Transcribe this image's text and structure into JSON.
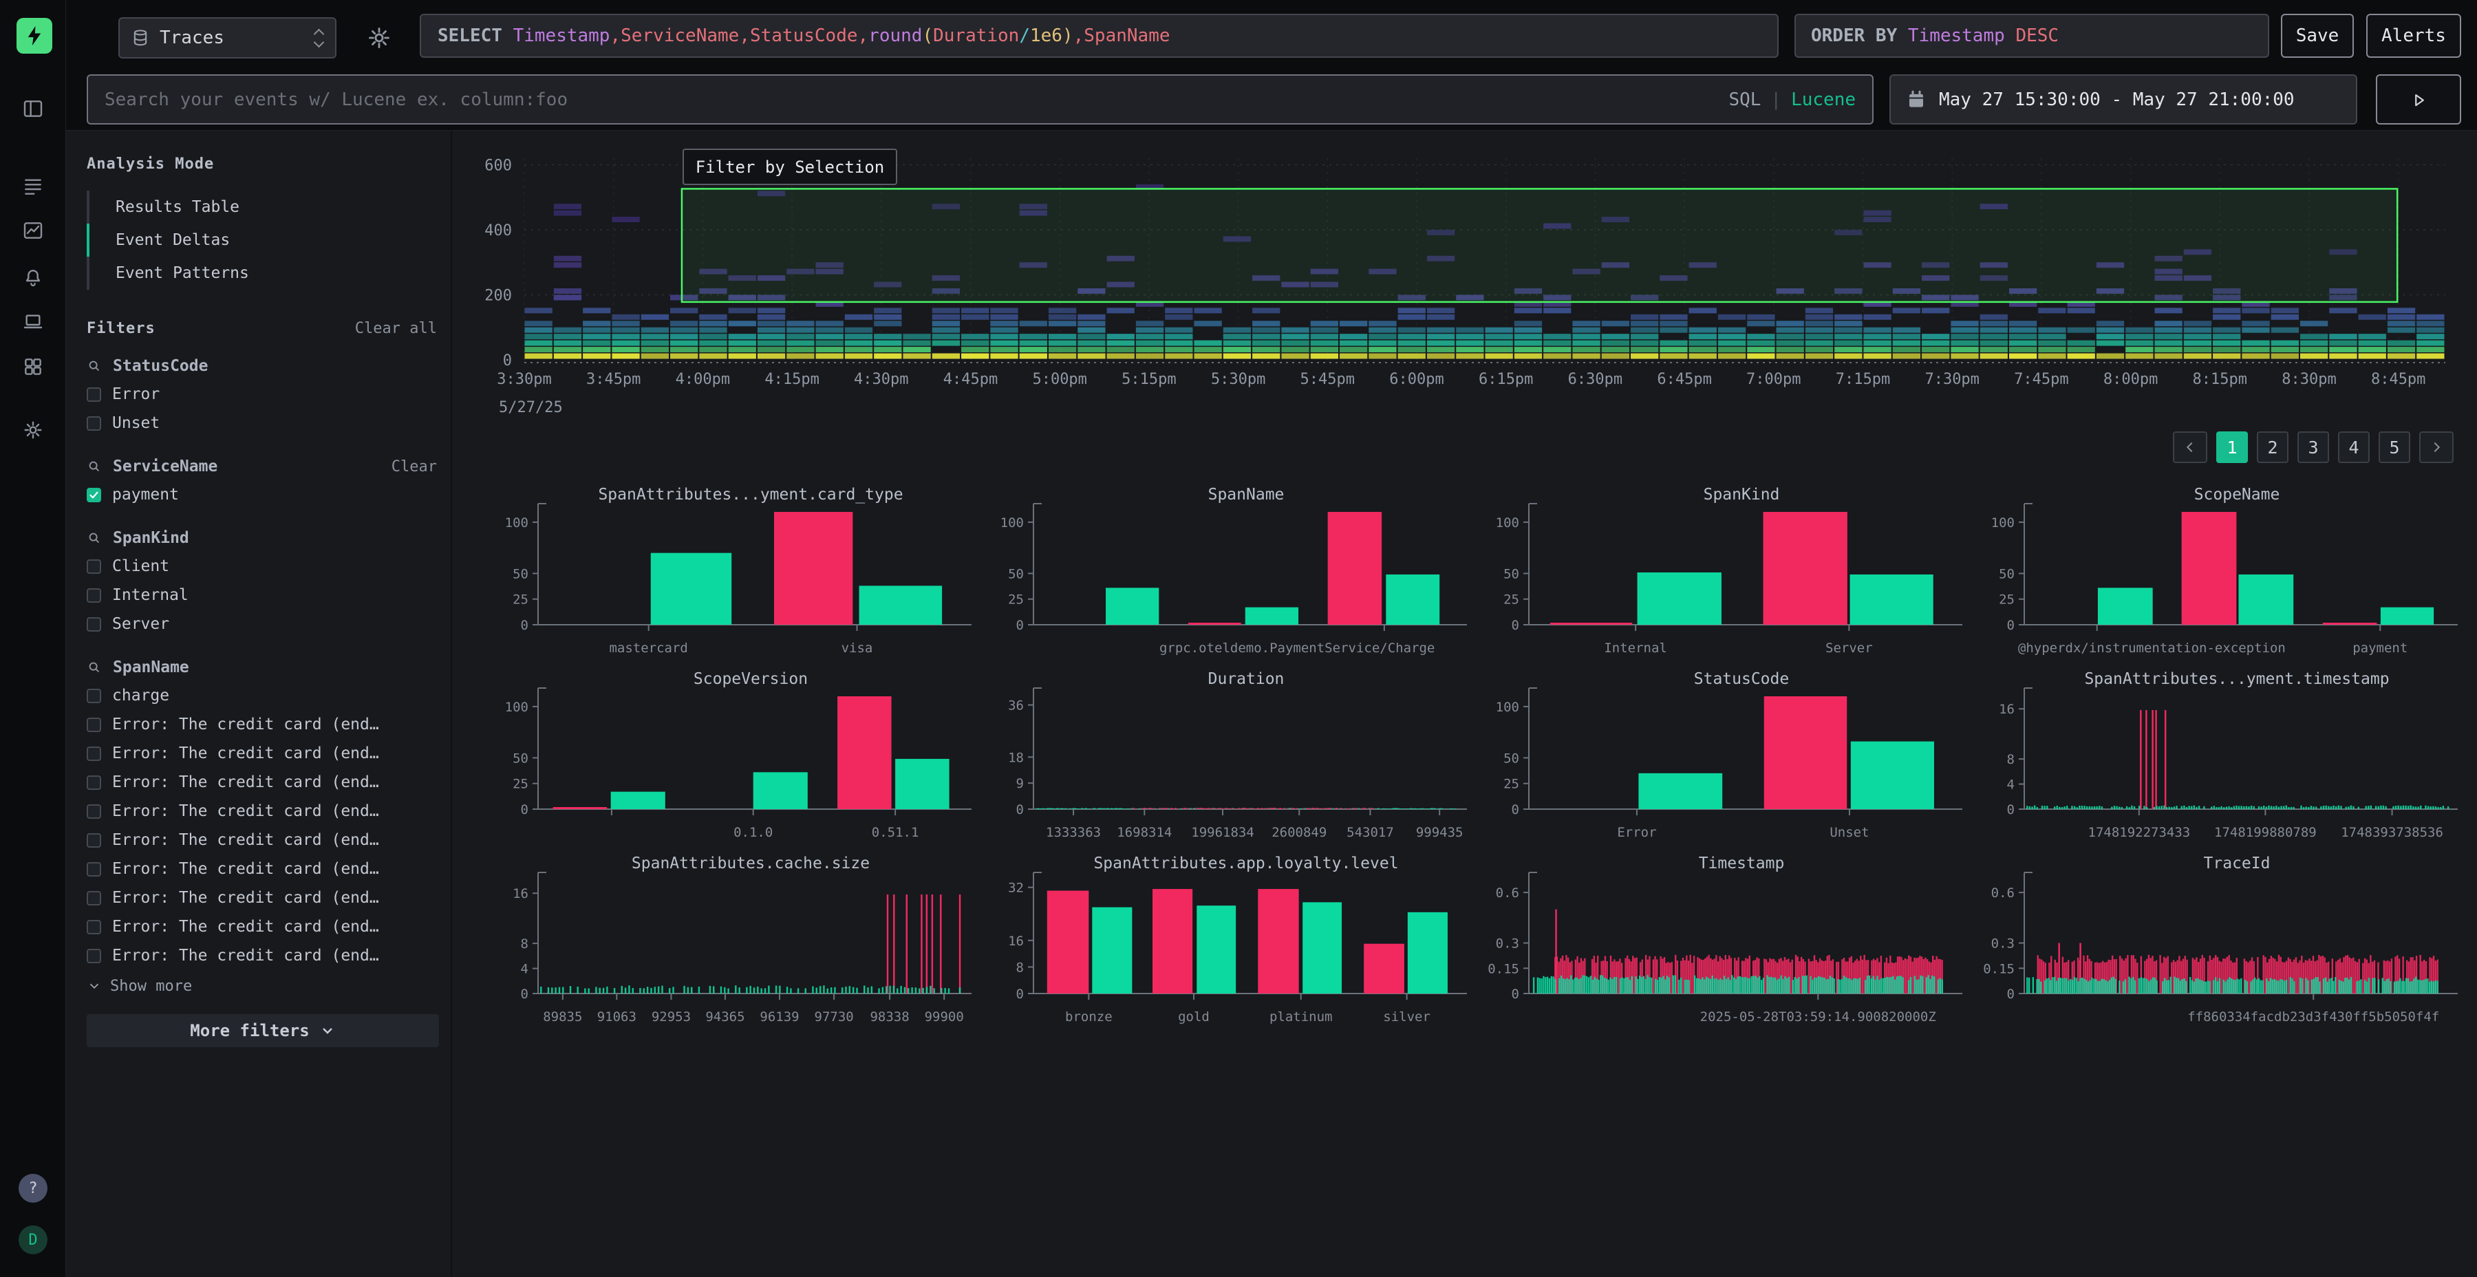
{
  "colors": {
    "accent": "#17bd8e",
    "accent_bright": "#4ade80",
    "bar_pink": "#f2295f",
    "bar_green": "#0cd9a0",
    "selection": "#4bf765",
    "token": {
      "kw": "#a9b0ba",
      "purple": "#c07ce0",
      "salmon": "#e5707a",
      "yellow": "#e3c179",
      "cyan": "#5fc6d0"
    }
  },
  "rail": {
    "icons": [
      "panel-left",
      "logs",
      "line-chart",
      "bell",
      "laptop",
      "grid",
      "gear"
    ],
    "help_label": "?",
    "avatar_label": "D"
  },
  "topbar": {
    "source_label": "Traces",
    "query_tokens": [
      {
        "t": "SELECT ",
        "c": "kw"
      },
      {
        "t": "Timestamp",
        "c": "purple"
      },
      {
        "t": ",",
        "c": "salmon"
      },
      {
        "t": "ServiceName",
        "c": "salmon"
      },
      {
        "t": ",",
        "c": "salmon"
      },
      {
        "t": "StatusCode",
        "c": "salmon"
      },
      {
        "t": ",",
        "c": "salmon"
      },
      {
        "t": "round",
        "c": "purple"
      },
      {
        "t": "(",
        "c": "yellow"
      },
      {
        "t": "Duration",
        "c": "salmon"
      },
      {
        "t": "/",
        "c": "cyan"
      },
      {
        "t": "1e6",
        "c": "yellow"
      },
      {
        "t": ")",
        "c": "yellow"
      },
      {
        "t": ",",
        "c": "salmon"
      },
      {
        "t": "SpanName",
        "c": "salmon"
      }
    ],
    "order_tokens": [
      {
        "t": "ORDER BY ",
        "c": "kw"
      },
      {
        "t": "Timestamp",
        "c": "purple"
      },
      {
        "t": " ",
        "c": "kw"
      },
      {
        "t": "DESC",
        "c": "salmon"
      }
    ],
    "save_label": "Save",
    "alerts_label": "Alerts"
  },
  "searchbar": {
    "placeholder": "Search your events w/ Lucene ex. column:foo",
    "sql_label": "SQL",
    "divider": "|",
    "lucene_label": "Lucene",
    "time_range": "May 27 15:30:00 - May 27 21:00:00"
  },
  "panel": {
    "analysis_mode": {
      "title": "Analysis Mode",
      "items": [
        {
          "label": "Results Table",
          "active": false
        },
        {
          "label": "Event Deltas",
          "active": true
        },
        {
          "label": "Event Patterns",
          "active": false
        }
      ]
    },
    "filters": {
      "title": "Filters",
      "clear_all": "Clear all",
      "groups": [
        {
          "name": "StatusCode",
          "clear": null,
          "items": [
            {
              "label": "Error",
              "checked": false
            },
            {
              "label": "Unset",
              "checked": false
            }
          ]
        },
        {
          "name": "ServiceName",
          "clear": "Clear",
          "items": [
            {
              "label": "payment",
              "checked": true
            }
          ]
        },
        {
          "name": "SpanKind",
          "clear": null,
          "items": [
            {
              "label": "Client",
              "checked": false
            },
            {
              "label": "Internal",
              "checked": false
            },
            {
              "label": "Server",
              "checked": false
            }
          ]
        },
        {
          "name": "SpanName",
          "clear": null,
          "items": [
            {
              "label": "charge",
              "checked": false
            },
            {
              "label": "Error: The credit card (end…",
              "checked": false
            },
            {
              "label": "Error: The credit card (end…",
              "checked": false
            },
            {
              "label": "Error: The credit card (end…",
              "checked": false
            },
            {
              "label": "Error: The credit card (end…",
              "checked": false
            },
            {
              "label": "Error: The credit card (end…",
              "checked": false
            },
            {
              "label": "Error: The credit card (end…",
              "checked": false
            },
            {
              "label": "Error: The credit card (end…",
              "checked": false
            },
            {
              "label": "Error: The credit card (end…",
              "checked": false
            },
            {
              "label": "Error: The credit card (end…",
              "checked": false
            }
          ]
        }
      ],
      "show_more": "Show more",
      "more_filters": "More filters"
    }
  },
  "pagination": {
    "pages": [
      "1",
      "2",
      "3",
      "4",
      "5"
    ],
    "active": "1"
  },
  "chart_data": [
    {
      "type": "heatmap",
      "y_ticks": [
        0,
        200,
        400,
        600
      ],
      "ymax": 620,
      "x_ticks": [
        "3:30pm",
        "3:45pm",
        "4:00pm",
        "4:15pm",
        "4:30pm",
        "4:45pm",
        "5:00pm",
        "5:15pm",
        "5:30pm",
        "5:45pm",
        "6:00pm",
        "6:15pm",
        "6:30pm",
        "6:45pm",
        "7:00pm",
        "7:15pm",
        "7:30pm",
        "7:45pm",
        "8:00pm",
        "8:15pm",
        "8:30pm",
        "8:45pm"
      ],
      "date_label": "5/27/25",
      "tooltip": "Filter by Selection",
      "selection": {
        "x0": 0.082,
        "x1": 0.975,
        "v0": 178,
        "v1": 526
      },
      "columns": 66,
      "bands": [
        [
          0,
          20,
          "#e2e239",
          1.0
        ],
        [
          20,
          40,
          "#48c06c",
          0.95
        ],
        [
          40,
          60,
          "#1fa88a",
          0.95
        ],
        [
          60,
          80,
          "#21938d",
          0.9
        ],
        [
          80,
          100,
          "#2a7a8e",
          0.8
        ],
        [
          100,
          120,
          "#31648e",
          0.62
        ],
        [
          120,
          160,
          "#3a4f8a",
          0.42
        ],
        [
          160,
          220,
          "#454086",
          0.2
        ],
        [
          220,
          320,
          "#413579",
          0.085
        ],
        [
          320,
          530,
          "#382c6e",
          0.035
        ]
      ]
    },
    {
      "type": "bar",
      "title": "SpanAttributes...yment.card_type",
      "y_ticks": [
        0,
        25,
        50,
        100
      ],
      "ymax": 110,
      "x_ticks": [
        {
          "pos": 0.26,
          "label": "mastercard"
        },
        {
          "pos": 0.75,
          "label": "visa"
        }
      ],
      "bars": [
        {
          "x": 0.265,
          "w": 0.19,
          "v": 70,
          "s": "in"
        },
        {
          "x": 0.555,
          "w": 0.185,
          "v": 110,
          "s": "out"
        },
        {
          "x": 0.755,
          "w": 0.195,
          "v": 38,
          "s": "in"
        }
      ]
    },
    {
      "type": "bar",
      "title": "SpanName",
      "y_ticks": [
        0,
        25,
        50,
        100
      ],
      "ymax": 110,
      "x_ticks": [
        {
          "pos": 0.825,
          "label": "grpc.oteldemo.PaymentService/Charge",
          "lpos": 0.62
        }
      ],
      "bars": [
        {
          "x": 0.17,
          "w": 0.125,
          "v": 36,
          "s": "in"
        },
        {
          "x": 0.364,
          "w": 0.124,
          "v": 2,
          "s": "out"
        },
        {
          "x": 0.498,
          "w": 0.125,
          "v": 17,
          "s": "in"
        },
        {
          "x": 0.692,
          "w": 0.127,
          "v": 110,
          "s": "out"
        },
        {
          "x": 0.829,
          "w": 0.126,
          "v": 49,
          "s": "in"
        }
      ]
    },
    {
      "type": "bar",
      "title": "SpanKind",
      "y_ticks": [
        0,
        25,
        50,
        100
      ],
      "ymax": 110,
      "x_ticks": [
        {
          "pos": 0.251,
          "label": "Internal"
        },
        {
          "pos": 0.753,
          "label": "Server"
        }
      ],
      "bars": [
        {
          "x": 0.05,
          "w": 0.193,
          "v": 2,
          "s": "out"
        },
        {
          "x": 0.255,
          "w": 0.198,
          "v": 51,
          "s": "in"
        },
        {
          "x": 0.551,
          "w": 0.198,
          "v": 110,
          "s": "out"
        },
        {
          "x": 0.755,
          "w": 0.196,
          "v": 49,
          "s": "in"
        }
      ]
    },
    {
      "type": "bar",
      "title": "ScopeName",
      "y_ticks": [
        0,
        25,
        50,
        100
      ],
      "ymax": 110,
      "x_ticks": [
        {
          "pos": 0.171,
          "label": "@hyperdx/instrumentation-exception",
          "lpos": 0.3
        },
        {
          "pos": 0.837,
          "label": "payment"
        }
      ],
      "bars": [
        {
          "x": 0.173,
          "w": 0.129,
          "v": 36,
          "s": "in"
        },
        {
          "x": 0.37,
          "w": 0.129,
          "v": 110,
          "s": "out"
        },
        {
          "x": 0.504,
          "w": 0.129,
          "v": 49,
          "s": "in"
        },
        {
          "x": 0.702,
          "w": 0.127,
          "v": 2,
          "s": "out"
        },
        {
          "x": 0.838,
          "w": 0.125,
          "v": 17,
          "s": "in"
        }
      ]
    },
    {
      "type": "bar",
      "title": "ScopeVersion",
      "y_ticks": [
        0,
        25,
        50,
        100
      ],
      "ymax": 110,
      "x_ticks": [
        {
          "pos": 0.173,
          "label": ""
        },
        {
          "pos": 0.506,
          "label": "0.1.0"
        },
        {
          "pos": 0.84,
          "label": "0.51.1"
        }
      ],
      "bars": [
        {
          "x": 0.035,
          "w": 0.127,
          "v": 2,
          "s": "out"
        },
        {
          "x": 0.171,
          "w": 0.128,
          "v": 17,
          "s": "in"
        },
        {
          "x": 0.506,
          "w": 0.128,
          "v": 36,
          "s": "in"
        },
        {
          "x": 0.704,
          "w": 0.127,
          "v": 110,
          "s": "out"
        },
        {
          "x": 0.84,
          "w": 0.127,
          "v": 49,
          "s": "in"
        }
      ]
    },
    {
      "type": "bar",
      "title": "Duration",
      "y_ticks": [
        0,
        9,
        18,
        36
      ],
      "ymax": 39,
      "x_ticks": [
        {
          "pos": 0.094,
          "label": "1333363"
        },
        {
          "pos": 0.261,
          "label": "1698314"
        },
        {
          "pos": 0.445,
          "label": "19961834"
        },
        {
          "pos": 0.625,
          "label": "2600849"
        },
        {
          "pos": 0.792,
          "label": "543017"
        },
        {
          "pos": 0.955,
          "label": "999435"
        }
      ],
      "combs": [
        {
          "x0": 0.005,
          "x1": 0.995,
          "n": 230,
          "vmin": 0.15,
          "vmax": 0.4,
          "s": "in",
          "seed": 3
        },
        {
          "x0": 0.23,
          "x1": 0.8,
          "n": 130,
          "vmin": 0.15,
          "vmax": 0.5,
          "s": "out",
          "seed": 9
        }
      ]
    },
    {
      "type": "bar",
      "title": "StatusCode",
      "y_ticks": [
        0,
        25,
        50,
        100
      ],
      "ymax": 110,
      "x_ticks": [
        {
          "pos": 0.254,
          "label": "Error"
        },
        {
          "pos": 0.754,
          "label": "Unset"
        }
      ],
      "bars": [
        {
          "x": 0.258,
          "w": 0.197,
          "v": 35,
          "s": "in"
        },
        {
          "x": 0.553,
          "w": 0.195,
          "v": 110,
          "s": "out"
        },
        {
          "x": 0.757,
          "w": 0.196,
          "v": 66,
          "s": "in"
        }
      ]
    },
    {
      "type": "bar",
      "title": "SpanAttributes...yment.timestamp",
      "y_ticks": [
        0,
        4,
        8,
        16
      ],
      "ymax": 18,
      "x_ticks": [
        {
          "pos": 0.27,
          "label": "1748192273433"
        },
        {
          "pos": 0.567,
          "label": "1748199880789"
        },
        {
          "pos": 0.865,
          "label": "1748393738536"
        }
      ],
      "bars": [
        {
          "x": 0.272,
          "w": 0.004,
          "v": 15.8,
          "s": "out"
        },
        {
          "x": 0.285,
          "w": 0.004,
          "v": 15.8,
          "s": "out"
        },
        {
          "x": 0.3,
          "w": 0.004,
          "v": 15.8,
          "s": "out"
        },
        {
          "x": 0.308,
          "w": 0.004,
          "v": 15.8,
          "s": "out"
        },
        {
          "x": 0.33,
          "w": 0.004,
          "v": 15.8,
          "s": "out"
        }
      ],
      "combs": [
        {
          "x0": 0.005,
          "x1": 0.995,
          "n": 170,
          "vmin": 0.3,
          "vmax": 0.6,
          "s": "in",
          "seed": 11
        }
      ]
    },
    {
      "type": "bar",
      "title": "SpanAttributes.cache.size",
      "y_ticks": [
        0,
        4,
        8,
        16
      ],
      "ymax": 18,
      "x_ticks": [
        {
          "pos": 0.058,
          "label": "89835"
        },
        {
          "pos": 0.185,
          "label": "91063"
        },
        {
          "pos": 0.313,
          "label": "92953"
        },
        {
          "pos": 0.44,
          "label": "94365"
        },
        {
          "pos": 0.568,
          "label": "96139"
        },
        {
          "pos": 0.696,
          "label": "97730"
        },
        {
          "pos": 0.827,
          "label": "98338"
        },
        {
          "pos": 0.955,
          "label": "99900"
        }
      ],
      "bars": [
        {
          "x": 0.82,
          "w": 0.004,
          "v": 15.8,
          "s": "out"
        },
        {
          "x": 0.835,
          "w": 0.004,
          "v": 15.8,
          "s": "out"
        },
        {
          "x": 0.865,
          "w": 0.004,
          "v": 15.8,
          "s": "out"
        },
        {
          "x": 0.9,
          "w": 0.004,
          "v": 15.8,
          "s": "out"
        },
        {
          "x": 0.912,
          "w": 0.004,
          "v": 15.8,
          "s": "out"
        },
        {
          "x": 0.925,
          "w": 0.004,
          "v": 15.8,
          "s": "out"
        },
        {
          "x": 0.945,
          "w": 0.004,
          "v": 15.8,
          "s": "out"
        },
        {
          "x": 0.99,
          "w": 0.004,
          "v": 15.8,
          "s": "out"
        }
      ],
      "combs": [
        {
          "x0": 0.005,
          "x1": 0.99,
          "n": 115,
          "vmin": 0.8,
          "vmax": 1.3,
          "s": "in",
          "seed": 21
        }
      ]
    },
    {
      "type": "bar",
      "title": "SpanAttributes.app.loyalty.level",
      "y_ticks": [
        0,
        8,
        16,
        32
      ],
      "ymax": 34,
      "x_ticks": [
        {
          "pos": 0.13,
          "label": "bronze"
        },
        {
          "pos": 0.377,
          "label": "gold"
        },
        {
          "pos": 0.629,
          "label": "platinum"
        },
        {
          "pos": 0.878,
          "label": "silver"
        }
      ],
      "bars": [
        {
          "x": 0.032,
          "w": 0.098,
          "v": 31,
          "s": "out"
        },
        {
          "x": 0.138,
          "w": 0.094,
          "v": 26,
          "s": "in"
        },
        {
          "x": 0.28,
          "w": 0.094,
          "v": 31.5,
          "s": "out"
        },
        {
          "x": 0.384,
          "w": 0.092,
          "v": 26.5,
          "s": "in"
        },
        {
          "x": 0.528,
          "w": 0.096,
          "v": 31.5,
          "s": "out"
        },
        {
          "x": 0.633,
          "w": 0.092,
          "v": 27.5,
          "s": "in"
        },
        {
          "x": 0.777,
          "w": 0.095,
          "v": 15,
          "s": "out"
        },
        {
          "x": 0.88,
          "w": 0.094,
          "v": 24.5,
          "s": "in"
        }
      ]
    },
    {
      "type": "bar",
      "title": "Timestamp",
      "y_ticks": [
        0,
        0.15,
        0.3,
        0.6
      ],
      "ymax": 0.67,
      "x_ticks": [
        {
          "pos": 0.68,
          "label": "2025-05-28T03:59:14.900820000Z"
        }
      ],
      "bars": [
        {
          "x": 0.062,
          "w": 0.004,
          "v": 0.5,
          "s": "out"
        }
      ],
      "combs": [
        {
          "x0": 0.06,
          "x1": 0.97,
          "n": 210,
          "vmin": 0.18,
          "vmax": 0.23,
          "s": "out",
          "seed": 31
        },
        {
          "x0": 0.005,
          "x1": 0.97,
          "n": 210,
          "vmin": 0.08,
          "vmax": 0.11,
          "s": "in",
          "seed": 32
        }
      ]
    },
    {
      "type": "bar",
      "title": "TraceId",
      "y_ticks": [
        0,
        0.15,
        0.3,
        0.6
      ],
      "ymax": 0.67,
      "x_ticks": [
        {
          "pos": 0.68,
          "label": "ff860334facdb23d3f430ff5b5050f4f"
        }
      ],
      "bars": [
        {
          "x": 0.08,
          "w": 0.004,
          "v": 0.3,
          "s": "out"
        },
        {
          "x": 0.13,
          "w": 0.004,
          "v": 0.3,
          "s": "out"
        }
      ],
      "combs": [
        {
          "x0": 0.03,
          "x1": 0.97,
          "n": 210,
          "vmin": 0.18,
          "vmax": 0.23,
          "s": "out",
          "seed": 41
        },
        {
          "x0": 0.005,
          "x1": 0.97,
          "n": 210,
          "vmin": 0.07,
          "vmax": 0.1,
          "s": "in",
          "seed": 42
        }
      ]
    }
  ]
}
